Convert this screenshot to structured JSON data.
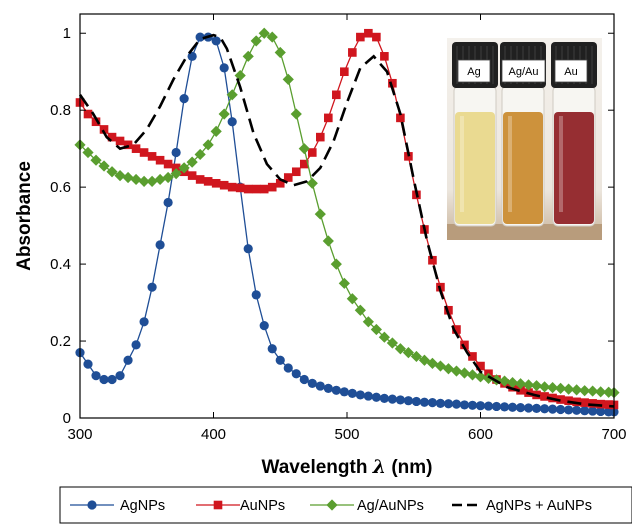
{
  "chart_data": {
    "type": "line",
    "xlabel": "Wavelength",
    "xlabel_symbol": "λ",
    "xlabel_unit": "(nm)",
    "ylabel": "Absorbance",
    "xlim": [
      300,
      700
    ],
    "ylim": [
      0,
      1.05
    ],
    "x_ticks": [
      300,
      400,
      500,
      600,
      700
    ],
    "y_ticks": [
      0,
      0.2,
      0.4,
      0.6,
      0.8,
      1
    ],
    "y_tick_labels": [
      "0",
      "0.2",
      "0.4",
      "0.6",
      "0.8",
      "1"
    ],
    "legend_position": "bottom",
    "series": [
      {
        "name": "AgNPs",
        "color": "#1f4e96",
        "marker": "circle",
        "style": "solid",
        "x": [
          300,
          306,
          312,
          318,
          324,
          330,
          336,
          342,
          348,
          354,
          360,
          366,
          372,
          378,
          384,
          390,
          396,
          402,
          408,
          414,
          420,
          426,
          432,
          438,
          444,
          450,
          456,
          462,
          468,
          474,
          480,
          486,
          492,
          498,
          504,
          510,
          516,
          522,
          528,
          534,
          540,
          546,
          552,
          558,
          564,
          570,
          576,
          582,
          588,
          594,
          600,
          606,
          612,
          618,
          624,
          630,
          636,
          642,
          648,
          654,
          660,
          666,
          672,
          678,
          684,
          690,
          696,
          700
        ],
        "y": [
          0.17,
          0.14,
          0.11,
          0.1,
          0.1,
          0.11,
          0.15,
          0.19,
          0.25,
          0.34,
          0.45,
          0.56,
          0.69,
          0.83,
          0.94,
          0.99,
          0.99,
          0.98,
          0.91,
          0.77,
          0.6,
          0.44,
          0.32,
          0.24,
          0.18,
          0.15,
          0.13,
          0.115,
          0.1,
          0.09,
          0.083,
          0.077,
          0.072,
          0.068,
          0.064,
          0.06,
          0.057,
          0.054,
          0.051,
          0.049,
          0.047,
          0.045,
          0.043,
          0.041,
          0.04,
          0.038,
          0.037,
          0.036,
          0.034,
          0.033,
          0.032,
          0.031,
          0.03,
          0.029,
          0.028,
          0.027,
          0.026,
          0.025,
          0.024,
          0.023,
          0.022,
          0.021,
          0.02,
          0.019,
          0.018,
          0.017,
          0.016,
          0.016
        ]
      },
      {
        "name": "AuNPs",
        "color": "#d0161e",
        "marker": "square",
        "style": "solid",
        "x": [
          300,
          306,
          312,
          318,
          324,
          330,
          336,
          342,
          348,
          354,
          360,
          366,
          372,
          378,
          384,
          390,
          396,
          402,
          408,
          414,
          420,
          426,
          432,
          438,
          444,
          450,
          456,
          462,
          468,
          474,
          480,
          486,
          492,
          498,
          504,
          510,
          516,
          522,
          528,
          534,
          540,
          546,
          552,
          558,
          564,
          570,
          576,
          582,
          588,
          594,
          600,
          606,
          612,
          618,
          624,
          630,
          636,
          642,
          648,
          654,
          660,
          666,
          672,
          678,
          684,
          690,
          696,
          700
        ],
        "y": [
          0.82,
          0.79,
          0.77,
          0.75,
          0.73,
          0.72,
          0.71,
          0.7,
          0.69,
          0.68,
          0.67,
          0.66,
          0.65,
          0.64,
          0.63,
          0.62,
          0.615,
          0.61,
          0.605,
          0.6,
          0.598,
          0.595,
          0.595,
          0.595,
          0.6,
          0.61,
          0.625,
          0.64,
          0.66,
          0.69,
          0.73,
          0.78,
          0.84,
          0.9,
          0.95,
          0.99,
          1.0,
          0.99,
          0.94,
          0.87,
          0.78,
          0.68,
          0.58,
          0.49,
          0.41,
          0.34,
          0.28,
          0.23,
          0.19,
          0.16,
          0.135,
          0.115,
          0.1,
          0.09,
          0.08,
          0.072,
          0.066,
          0.06,
          0.056,
          0.052,
          0.048,
          0.045,
          0.042,
          0.04,
          0.038,
          0.036,
          0.035,
          0.034
        ]
      },
      {
        "name": "Ag/AuNPs",
        "color": "#5a9e2f",
        "marker": "diamond",
        "style": "solid",
        "x": [
          300,
          306,
          312,
          318,
          324,
          330,
          336,
          342,
          348,
          354,
          360,
          366,
          372,
          378,
          384,
          390,
          396,
          402,
          408,
          414,
          420,
          426,
          432,
          438,
          444,
          450,
          456,
          462,
          468,
          474,
          480,
          486,
          492,
          498,
          504,
          510,
          516,
          522,
          528,
          534,
          540,
          546,
          552,
          558,
          564,
          570,
          576,
          582,
          588,
          594,
          600,
          606,
          612,
          618,
          624,
          630,
          636,
          642,
          648,
          654,
          660,
          666,
          672,
          678,
          684,
          690,
          696,
          700
        ],
        "y": [
          0.71,
          0.69,
          0.67,
          0.655,
          0.64,
          0.63,
          0.625,
          0.62,
          0.615,
          0.615,
          0.62,
          0.625,
          0.635,
          0.65,
          0.665,
          0.685,
          0.71,
          0.745,
          0.79,
          0.84,
          0.89,
          0.94,
          0.98,
          1.0,
          0.99,
          0.95,
          0.88,
          0.79,
          0.7,
          0.61,
          0.53,
          0.46,
          0.4,
          0.35,
          0.31,
          0.28,
          0.25,
          0.23,
          0.21,
          0.195,
          0.18,
          0.17,
          0.16,
          0.15,
          0.142,
          0.135,
          0.128,
          0.122,
          0.117,
          0.112,
          0.107,
          0.103,
          0.099,
          0.096,
          0.092,
          0.089,
          0.086,
          0.084,
          0.081,
          0.079,
          0.077,
          0.075,
          0.073,
          0.071,
          0.07,
          0.068,
          0.067,
          0.066
        ]
      },
      {
        "name": "AgNPs + AuNPs",
        "color": "#000000",
        "marker": "none",
        "style": "dashed",
        "x": [
          300,
          310,
          320,
          330,
          340,
          350,
          360,
          370,
          380,
          390,
          400,
          405,
          410,
          420,
          430,
          440,
          450,
          460,
          470,
          480,
          490,
          500,
          510,
          520,
          530,
          540,
          550,
          560,
          570,
          580,
          590,
          600,
          620,
          640,
          660,
          680,
          700
        ],
        "y": [
          0.84,
          0.79,
          0.73,
          0.7,
          0.71,
          0.75,
          0.81,
          0.88,
          0.94,
          0.985,
          0.995,
          0.99,
          0.96,
          0.86,
          0.74,
          0.66,
          0.62,
          0.605,
          0.615,
          0.65,
          0.72,
          0.82,
          0.91,
          0.94,
          0.9,
          0.79,
          0.62,
          0.46,
          0.33,
          0.23,
          0.17,
          0.12,
          0.08,
          0.06,
          0.045,
          0.035,
          0.03
        ]
      }
    ]
  },
  "inset": {
    "vial_labels": [
      "Ag",
      "Ag/Au",
      "Au"
    ],
    "vial_colors": [
      "#e8d78a",
      "#c98a2e",
      "#8e1e24"
    ]
  }
}
